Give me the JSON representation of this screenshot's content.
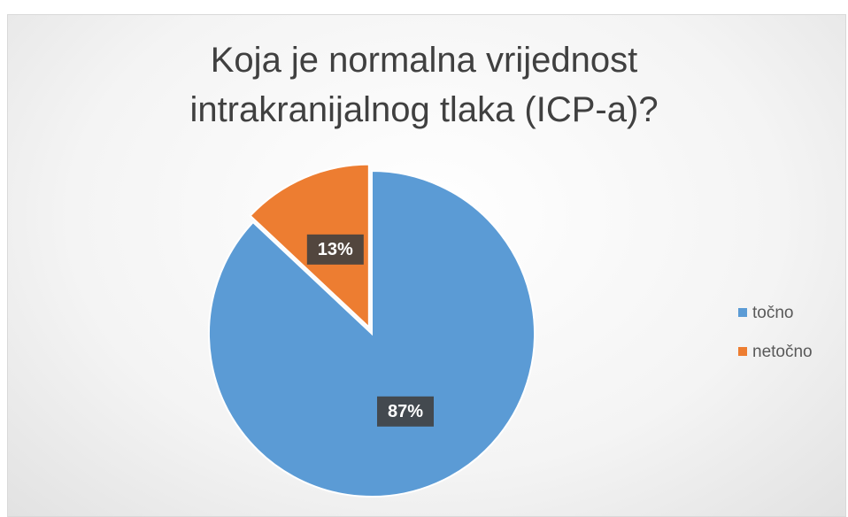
{
  "chart_data": {
    "type": "pie",
    "title": "Koja je normalna vrijednost intrakranijalnog tlaka (ICP-a)?",
    "categories": [
      "točno",
      "netočno"
    ],
    "values": [
      87,
      13
    ],
    "value_labels": [
      "87%",
      "13%"
    ],
    "colors": [
      "#5b9bd5",
      "#ed7d31"
    ],
    "legend": "right"
  }
}
